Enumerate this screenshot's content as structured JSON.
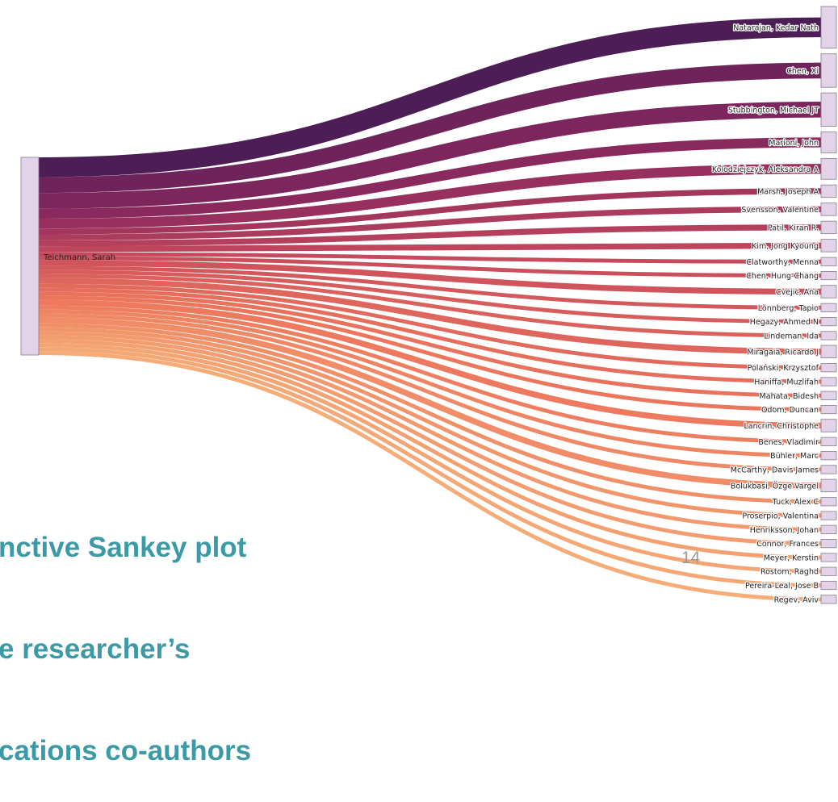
{
  "chart_data": {
    "type": "sankey",
    "source": "Teichmann, Sarah",
    "targets": [
      {
        "name": "Natarajan, Kedar Nath",
        "value": 10
      },
      {
        "name": "Chen, Xi",
        "value": 8
      },
      {
        "name": "Stubbington, Michael JT",
        "value": 8
      },
      {
        "name": "Marioni, John",
        "value": 5
      },
      {
        "name": "Kolodziejczyk, Aleksandra A",
        "value": 5
      },
      {
        "name": "Marsh, Joseph A",
        "value": 3
      },
      {
        "name": "Svensson, Valentine",
        "value": 3
      },
      {
        "name": "Patil, Kiran R.",
        "value": 3
      },
      {
        "name": "Kim, Jong Kyoung",
        "value": 3
      },
      {
        "name": "Clatworthy, Menna",
        "value": 2
      },
      {
        "name": "Chen, Hung-Chang",
        "value": 2
      },
      {
        "name": "Cvejic, Ana",
        "value": 3
      },
      {
        "name": "Lönnberg, Tapio",
        "value": 2
      },
      {
        "name": "Hegazy, Ahmed N",
        "value": 2
      },
      {
        "name": "Lindeman, Ida",
        "value": 2
      },
      {
        "name": "Miragaia, Ricardo J",
        "value": 3
      },
      {
        "name": "Polański, Krzysztof",
        "value": 2
      },
      {
        "name": "Haniffa, Muzlifah",
        "value": 2
      },
      {
        "name": "Mahata, Bidesh",
        "value": 2
      },
      {
        "name": "Odom, Duncan",
        "value": 2
      },
      {
        "name": "Lancrin, Christophe",
        "value": 3
      },
      {
        "name": "Benes, Vladimir",
        "value": 2
      },
      {
        "name": "Bühler, Marc",
        "value": 2
      },
      {
        "name": "McCarthy, Davis James",
        "value": 2
      },
      {
        "name": "Bolukbasi, Özge Vargel",
        "value": 3
      },
      {
        "name": "Tuck, Alex C",
        "value": 2
      },
      {
        "name": "Proserpio, Valentina",
        "value": 2
      },
      {
        "name": "Henriksson, Johan",
        "value": 2
      },
      {
        "name": "Connor, Frances",
        "value": 2
      },
      {
        "name": "Meyer, Kerstin",
        "value": 2
      },
      {
        "name": "Rostom, Raghd",
        "value": 2
      },
      {
        "name": "Pereira-Leal, Jose B",
        "value": 2
      },
      {
        "name": "Regev, Aviv",
        "value": 2
      }
    ],
    "colors": {
      "node": "#e2d3e8",
      "node_stroke": "#8a7a90",
      "gradient": [
        "#3e0b48",
        "#7a1450",
        "#c23a4e",
        "#ea6a4e",
        "#f5a56b"
      ]
    }
  },
  "caption": {
    "line1": "nctive Sankey plot",
    "line2": "e researcher’s",
    "line3": "cations co-authors"
  },
  "page_number": "14"
}
